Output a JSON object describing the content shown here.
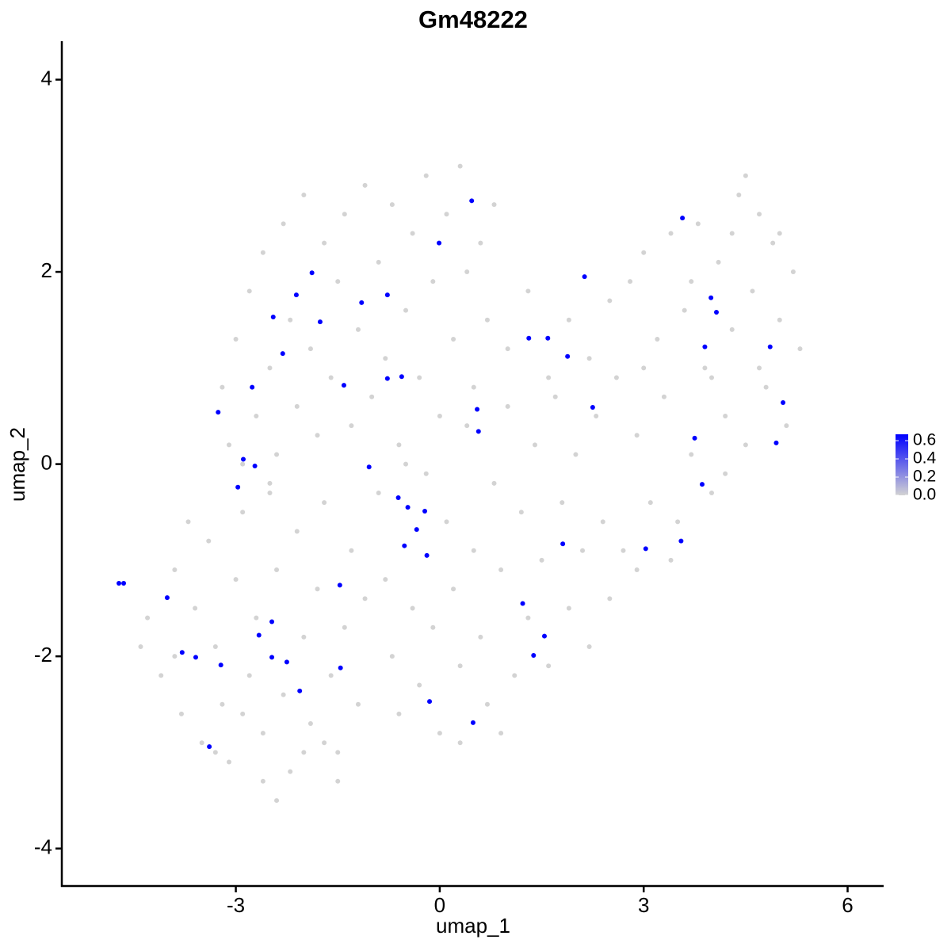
{
  "chart_data": {
    "type": "scatter",
    "title": "Gm48222",
    "x_label": "umap_1",
    "y_label": "umap_2",
    "xlim": [
      -5.56,
      6.53
    ],
    "ylim": [
      -4.39,
      4.4
    ],
    "xticks": [
      -3,
      0,
      3,
      6
    ],
    "yticks": [
      -4,
      -2,
      0,
      2,
      4
    ],
    "color_low": "#d3d3d3",
    "color_high": "#0000ff",
    "clim": [
      0,
      0.67
    ],
    "cticks": [
      {
        "value": 0,
        "label": "0.0"
      },
      0.2,
      0.4,
      0.6
    ],
    "x": [
      -4.3,
      -4.1,
      -3.9,
      -3.8,
      -3.6,
      -3.5,
      -3.4,
      -3.3,
      -3.2,
      -3.1,
      -3.0,
      -2.9,
      -2.8,
      -2.7,
      -2.6,
      -2.5,
      -2.4,
      -2.3,
      -2.2,
      -2.1,
      -2.0,
      -1.9,
      -1.8,
      -1.7,
      -1.6,
      -1.5,
      -1.4,
      -1.3,
      -1.2,
      -1.1,
      -3.7,
      -3.9,
      -4.4,
      -2.6,
      -2.4,
      -2.0,
      -3.3,
      -2.9,
      -1.7,
      -1.5,
      -3.2,
      -3.1,
      -3.0,
      -2.8,
      -2.7,
      -2.6,
      -2.5,
      -2.4,
      -2.3,
      -2.2,
      -2.1,
      -2.0,
      -1.9,
      -1.8,
      -1.7,
      -1.6,
      -1.5,
      -1.4,
      -1.3,
      -1.2,
      -1.1,
      -1.0,
      -0.9,
      -0.8,
      -0.7,
      -0.6,
      -0.5,
      -0.4,
      -0.3,
      -0.2,
      -0.1,
      0.0,
      0.1,
      0.2,
      0.3,
      0.4,
      0.5,
      0.6,
      0.7,
      0.8,
      -2.9,
      -2.5,
      -0.9,
      -0.8,
      -0.7,
      -0.6,
      -0.5,
      -0.4,
      -0.3,
      -0.2,
      -0.1,
      0.0,
      0.1,
      0.2,
      0.3,
      0.4,
      0.5,
      0.6,
      0.7,
      0.8,
      0.9,
      1.0,
      1.1,
      1.2,
      1.3,
      1.4,
      1.5,
      1.6,
      1.7,
      1.8,
      1.9,
      2.0,
      2.1,
      2.2,
      2.3,
      2.4,
      2.5,
      1.0,
      1.3,
      1.6,
      1.9,
      2.2,
      2.5,
      0.9,
      0.3,
      2.6,
      2.7,
      2.8,
      2.9,
      3.0,
      3.1,
      3.2,
      3.3,
      3.4,
      3.5,
      3.6,
      3.7,
      3.8,
      3.9,
      4.0,
      4.1,
      4.2,
      4.3,
      4.4,
      4.5,
      4.6,
      4.7,
      4.8,
      4.9,
      5.0,
      5.1,
      5.2,
      5.3,
      4.5,
      4.3,
      3.4,
      2.9,
      3.0,
      3.7,
      4.0,
      4.7,
      5.0,
      4.2,
      0.47,
      -0.01,
      -1.88,
      -2.11,
      -1.15,
      -0.77,
      -2.45,
      -1.76,
      -2.31,
      -2.76,
      -1.41,
      -0.77,
      -0.56,
      -3.26,
      0.55,
      0.57,
      -2.89,
      -2.72,
      -1.04,
      -2.97,
      -0.61,
      -0.47,
      -0.22,
      -0.34,
      -0.52,
      -0.19,
      2.13,
      1.31,
      1.59,
      1.88,
      2.25,
      3.57,
      3.99,
      4.07,
      3.9,
      4.86,
      5.05,
      3.75,
      4.95,
      3.86,
      3.55,
      3.03,
      1.81,
      -4.72,
      -4.65,
      -4.01,
      -1.47,
      1.22,
      -2.47,
      -2.66,
      1.54,
      -3.79,
      -3.59,
      -2.47,
      -2.25,
      -3.22,
      1.38,
      -1.46,
      -2.06,
      -0.15,
      0.49,
      -3.39
    ],
    "y": [
      -1.6,
      -2.2,
      -1.1,
      -2.6,
      -1.5,
      -2.9,
      -0.8,
      -1.9,
      -2.5,
      -3.1,
      -1.2,
      -0.5,
      -2.2,
      -1.6,
      -2.8,
      -0.3,
      -1.1,
      -2.4,
      -3.2,
      -0.7,
      -1.8,
      -2.7,
      -1.3,
      -0.4,
      -2.2,
      -3.0,
      -1.7,
      -0.9,
      -2.5,
      -1.4,
      -0.6,
      -2.0,
      -1.9,
      -3.3,
      -3.5,
      -3.0,
      -3.0,
      -2.6,
      -2.9,
      -3.3,
      0.8,
      0.2,
      1.3,
      1.8,
      0.5,
      2.2,
      1.0,
      0.1,
      2.5,
      1.5,
      0.6,
      2.8,
      1.2,
      0.3,
      2.3,
      0.9,
      1.9,
      2.6,
      0.4,
      1.4,
      2.9,
      0.7,
      2.1,
      1.1,
      2.7,
      0.2,
      1.6,
      2.4,
      0.9,
      3.0,
      1.9,
      0.5,
      2.6,
      1.3,
      3.1,
      2.0,
      0.8,
      2.3,
      1.5,
      2.7,
      0.0,
      -0.2,
      -0.3,
      -1.2,
      -2.0,
      -2.6,
      0.0,
      -1.5,
      -2.3,
      -0.1,
      -1.7,
      -2.8,
      -0.6,
      -1.3,
      -2.1,
      0.4,
      -0.9,
      -1.8,
      -2.5,
      -0.2,
      -1.1,
      0.6,
      -2.2,
      -0.5,
      -1.6,
      0.2,
      -1.0,
      -2.1,
      0.7,
      -0.4,
      -1.5,
      0.1,
      -0.9,
      -1.9,
      0.5,
      -0.6,
      -1.4,
      1.2,
      1.8,
      0.9,
      1.5,
      1.1,
      1.7,
      -2.8,
      -2.9,
      0.9,
      -0.9,
      1.9,
      0.3,
      2.2,
      -0.4,
      1.3,
      0.7,
      2.4,
      -0.6,
      1.6,
      0.1,
      2.5,
      1.0,
      -0.3,
      2.1,
      0.5,
      1.4,
      2.8,
      0.2,
      1.8,
      2.6,
      0.8,
      2.3,
      1.5,
      0.4,
      2.0,
      1.2,
      3.0,
      2.4,
      -1.0,
      -1.1,
      1.0,
      1.9,
      0.9,
      1.0,
      2.4,
      -0.1,
      2.74,
      2.3,
      1.99,
      1.76,
      1.68,
      1.76,
      1.53,
      1.48,
      1.15,
      0.8,
      0.82,
      0.89,
      0.91,
      0.54,
      0.57,
      0.34,
      0.05,
      -0.02,
      -0.03,
      -0.24,
      -0.35,
      -0.45,
      -0.49,
      -0.68,
      -0.85,
      -0.95,
      1.95,
      1.31,
      1.31,
      1.12,
      0.59,
      2.56,
      1.73,
      1.58,
      1.22,
      1.22,
      0.64,
      0.27,
      0.22,
      -0.21,
      -0.8,
      -0.88,
      -0.83,
      -1.24,
      -1.24,
      -1.39,
      -1.26,
      -1.45,
      -1.64,
      -1.78,
      -1.79,
      -1.96,
      -2.01,
      -2.01,
      -2.06,
      -2.09,
      -1.99,
      -2.12,
      -2.36,
      -2.47,
      -2.69,
      -2.94
    ],
    "values": [
      0,
      0,
      0,
      0,
      0,
      0,
      0,
      0,
      0,
      0,
      0,
      0,
      0,
      0,
      0,
      0,
      0,
      0,
      0,
      0,
      0,
      0,
      0,
      0,
      0,
      0,
      0,
      0,
      0,
      0,
      0,
      0,
      0,
      0,
      0,
      0,
      0,
      0,
      0,
      0,
      0,
      0,
      0,
      0,
      0,
      0,
      0,
      0,
      0,
      0,
      0,
      0,
      0,
      0,
      0,
      0,
      0,
      0,
      0,
      0,
      0,
      0,
      0,
      0,
      0,
      0,
      0,
      0,
      0,
      0,
      0,
      0,
      0,
      0,
      0,
      0,
      0,
      0,
      0,
      0,
      0,
      0,
      0,
      0,
      0,
      0,
      0,
      0,
      0,
      0,
      0,
      0,
      0,
      0,
      0,
      0,
      0,
      0,
      0,
      0,
      0,
      0,
      0,
      0,
      0,
      0,
      0,
      0,
      0,
      0,
      0,
      0,
      0,
      0,
      0,
      0,
      0,
      0,
      0,
      0,
      0,
      0,
      0,
      0,
      0,
      0,
      0,
      0,
      0,
      0,
      0,
      0,
      0,
      0,
      0,
      0,
      0,
      0,
      0,
      0,
      0,
      0,
      0,
      0,
      0,
      0,
      0,
      0,
      0,
      0,
      0,
      0,
      0,
      0,
      0,
      0,
      0,
      0,
      0,
      0,
      0,
      0,
      0,
      0.67,
      0.67,
      0.67,
      0.67,
      0.67,
      0.67,
      0.67,
      0.67,
      0.67,
      0.67,
      0.67,
      0.67,
      0.67,
      0.67,
      0.67,
      0.67,
      0.67,
      0.67,
      0.67,
      0.67,
      0.67,
      0.67,
      0.67,
      0.67,
      0.67,
      0.67,
      0.67,
      0.67,
      0.67,
      0.67,
      0.67,
      0.67,
      0.67,
      0.67,
      0.67,
      0.67,
      0.67,
      0.67,
      0.67,
      0.67,
      0.67,
      0.67,
      0.67,
      0.67,
      0.67,
      0.67,
      0.67,
      0.67,
      0.67,
      0.67,
      0.67,
      0.67,
      0.67,
      0.67,
      0.67,
      0.67,
      0.67,
      0.67,
      0.67,
      0.67,
      0.67,
      0.67
    ]
  }
}
